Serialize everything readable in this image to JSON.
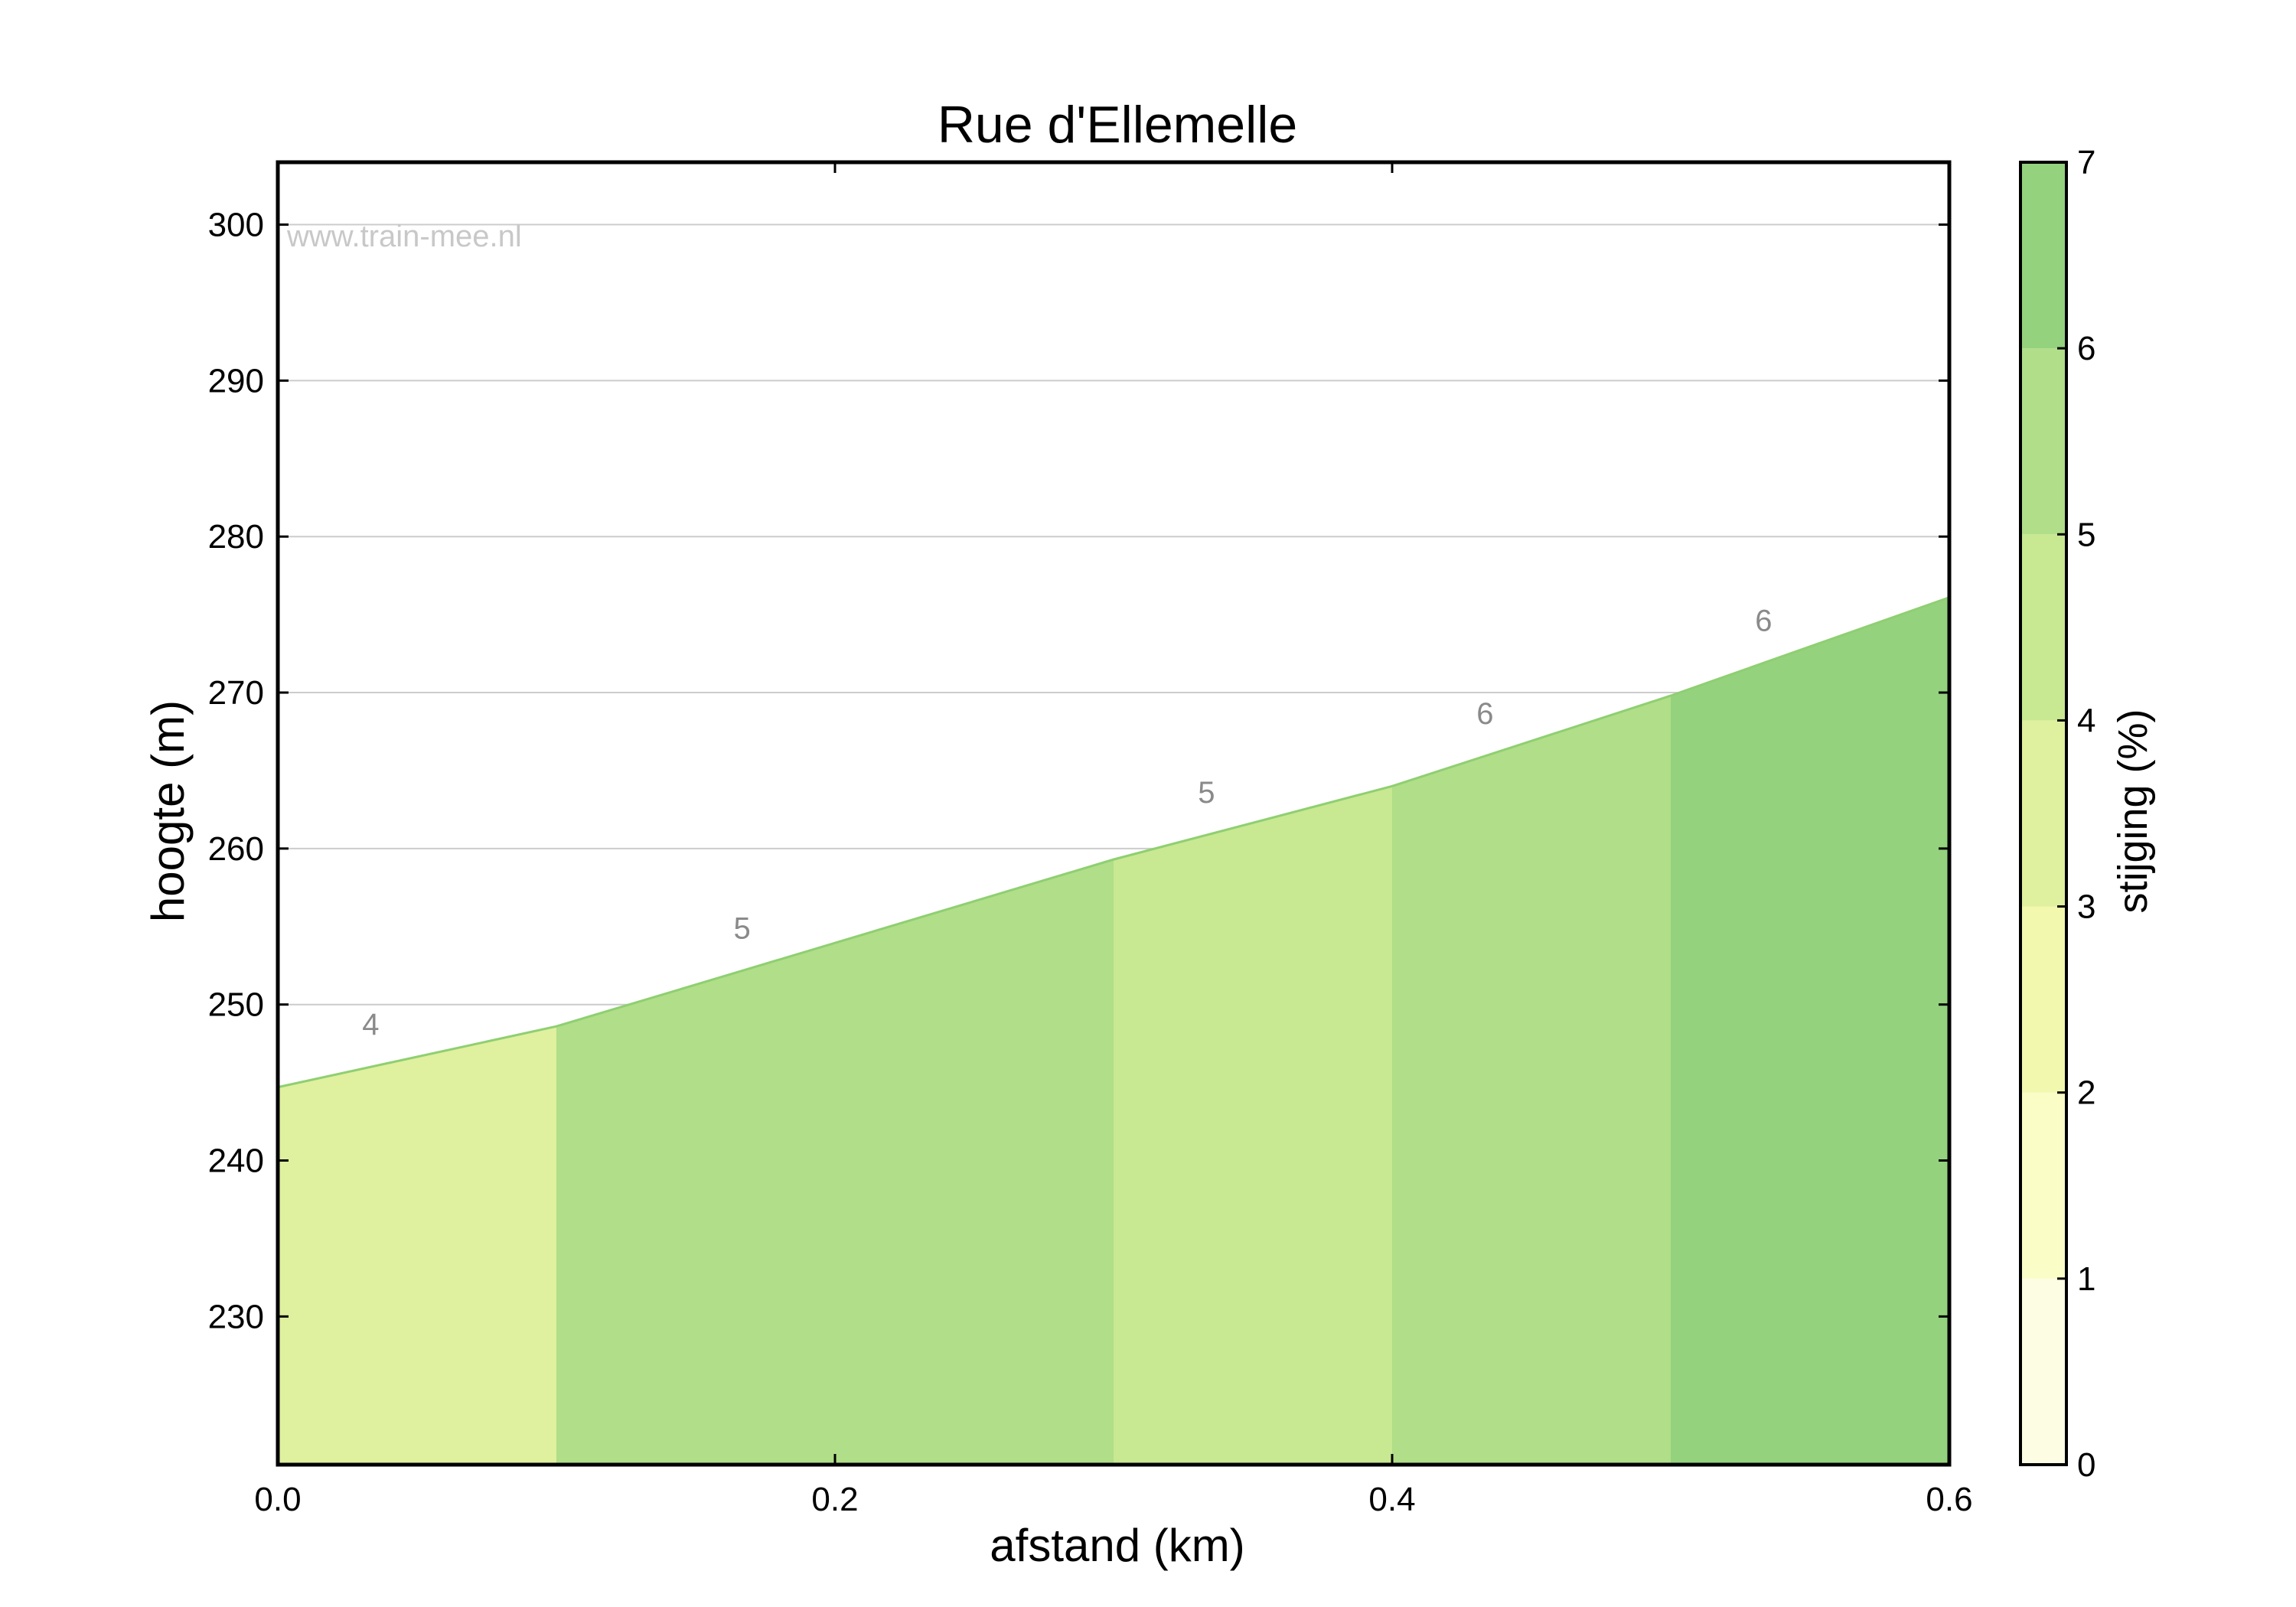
{
  "chart_data": {
    "type": "area",
    "title": "Rue d'Ellemelle",
    "xlabel": "afstand (km)",
    "ylabel": "hoogte (m)",
    "colorbar_label": "stijging (%)",
    "watermark": "www.train-mee.nl",
    "xlim": [
      0,
      0.6
    ],
    "ylim": [
      220.5,
      304
    ],
    "x_ticks": [
      0.0,
      0.2,
      0.4,
      0.6
    ],
    "x_tick_labels": [
      "0.0",
      "0.2",
      "0.4",
      "0.6"
    ],
    "y_ticks": [
      230,
      240,
      250,
      260,
      270,
      280,
      290,
      300
    ],
    "y_tick_labels": [
      "230",
      "240",
      "250",
      "260",
      "270",
      "280",
      "290",
      "300"
    ],
    "grid": true,
    "x": [
      0.0,
      0.1,
      0.3,
      0.4,
      0.5,
      0.6
    ],
    "y": [
      244.7,
      248.6,
      259.3,
      264.0,
      269.8,
      276.1
    ],
    "segments": [
      {
        "x0": 0.0,
        "x1": 0.1,
        "gradient_label": "4",
        "color": "#dff09f"
      },
      {
        "x0": 0.1,
        "x1": 0.3,
        "gradient_label": "5",
        "color": "#b1de88"
      },
      {
        "x0": 0.3,
        "x1": 0.4,
        "gradient_label": "5",
        "color": "#c8e892"
      },
      {
        "x0": 0.4,
        "x1": 0.5,
        "gradient_label": "6",
        "color": "#b1de88"
      },
      {
        "x0": 0.5,
        "x1": 0.6,
        "gradient_label": "6",
        "color": "#94d27e"
      }
    ],
    "colorbar": {
      "range": [
        0,
        7
      ],
      "ticks": [
        "0",
        "1",
        "2",
        "3",
        "4",
        "5",
        "6",
        "7"
      ],
      "bands": [
        "#fdfde4",
        "#fafdc6",
        "#f2f8ad",
        "#dff09f",
        "#c8e892",
        "#b1de88",
        "#94d27e"
      ]
    }
  }
}
